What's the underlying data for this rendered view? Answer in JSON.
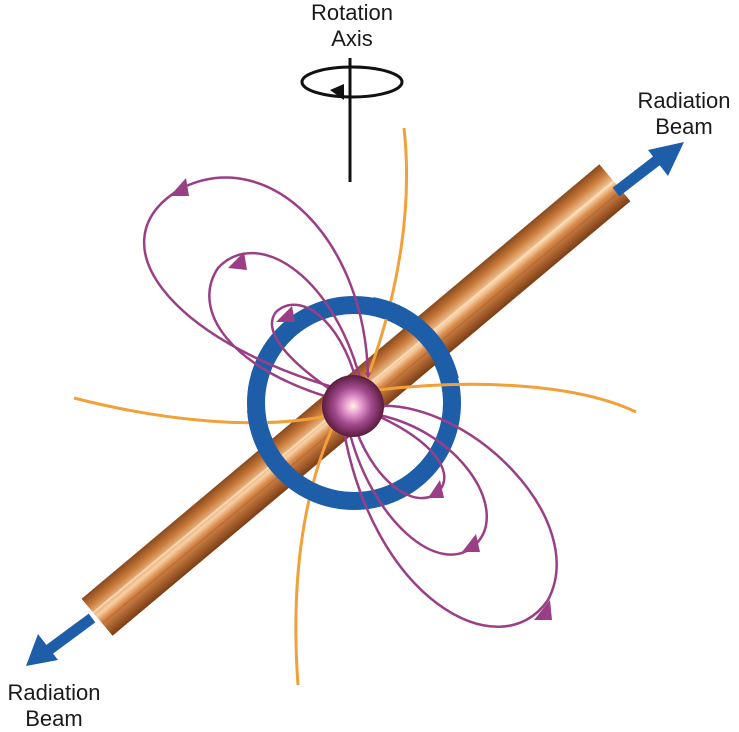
{
  "labels": {
    "rotation_axis": [
      "Rotation",
      "Axis"
    ],
    "beam_top_right": [
      "Radiation",
      "Beam"
    ],
    "beam_bottom_left": [
      "Radiation",
      "Beam"
    ]
  },
  "colors": {
    "beam": "#c8742f",
    "beam_highlight": "#f6c89a",
    "field_lines": "#9a3f86",
    "open_field_lines": "#f2a03a",
    "torus": "#1e5ea8",
    "arrows": "#1e5ea8",
    "axis": "#111111"
  }
}
